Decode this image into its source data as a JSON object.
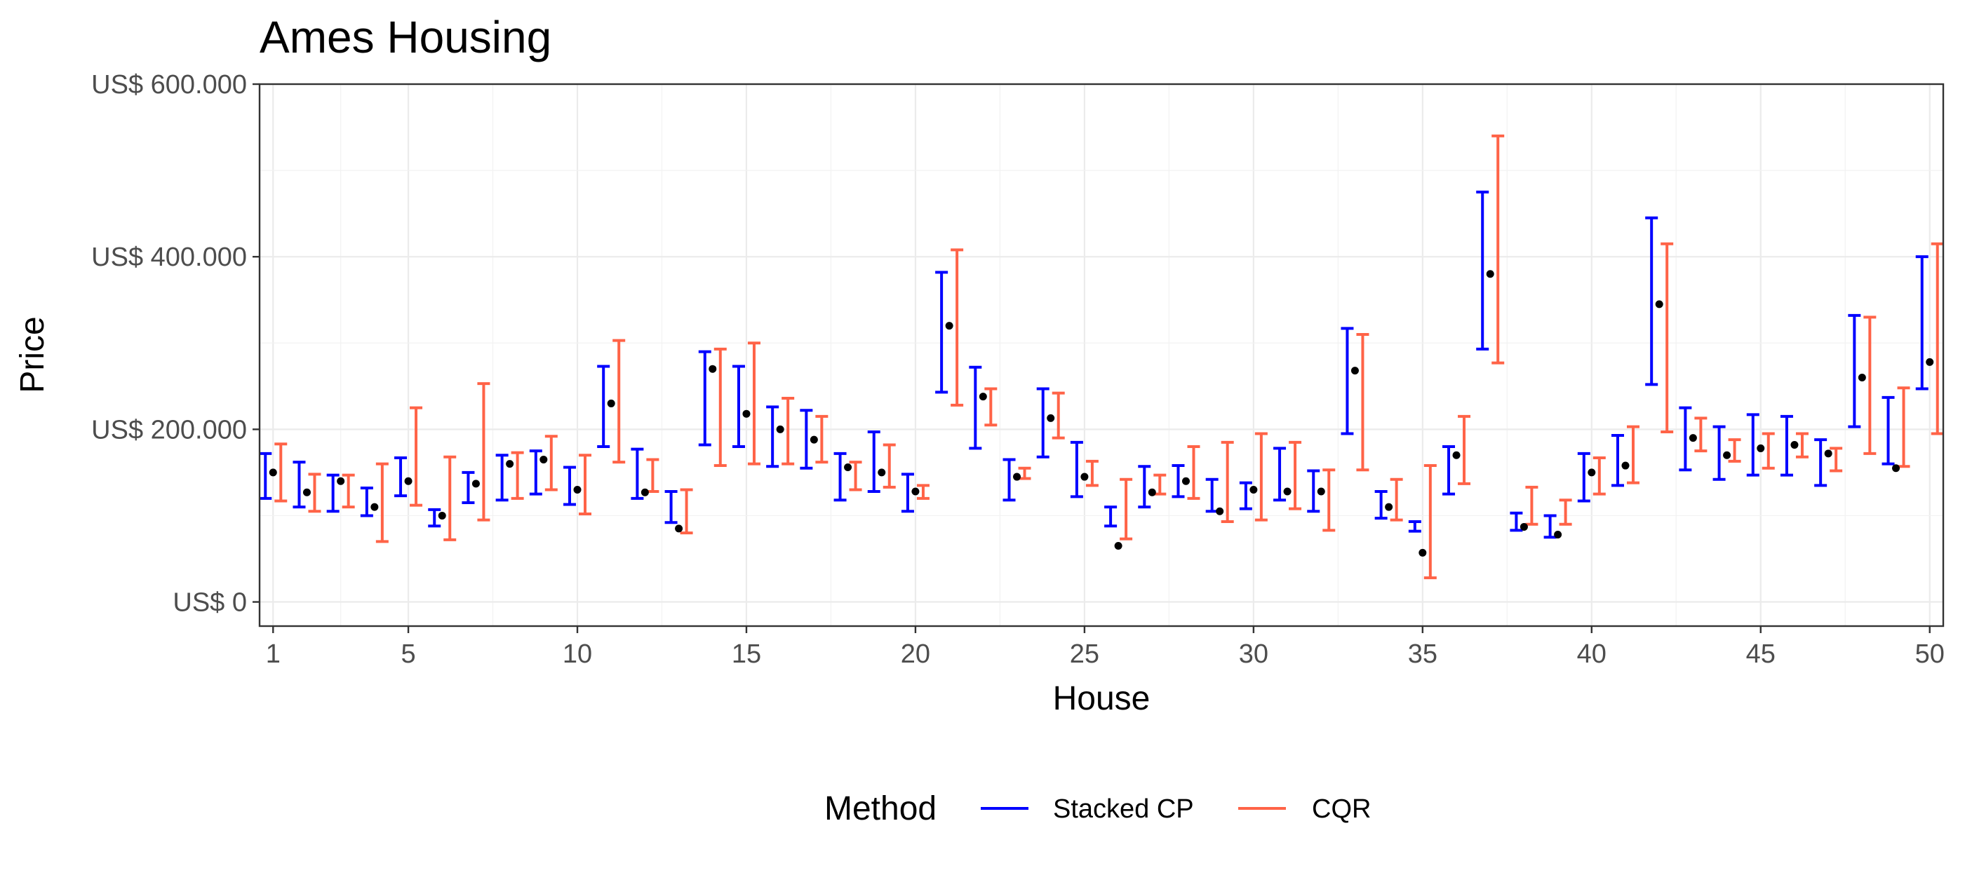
{
  "chart_data": {
    "type": "errorbar",
    "title": "Ames Housing",
    "xlabel": "House",
    "ylabel": "Price",
    "xlim": [
      0.6,
      50.4
    ],
    "ylim": [
      -28000,
      600000
    ],
    "x_ticks": [
      1,
      5,
      10,
      15,
      20,
      25,
      30,
      35,
      40,
      45,
      50
    ],
    "y_ticks": [
      0,
      200000,
      400000,
      600000
    ],
    "y_tick_labels": [
      "US$ 0",
      "US$ 200.000",
      "US$ 400.000",
      "US$ 600.000"
    ],
    "grid": true,
    "legend_position": "bottom",
    "legend_title": "Method",
    "colors": {
      "stacked_cp": "#0000ff",
      "cqr": "#ff6347",
      "point": "#000000"
    },
    "points": [
      {
        "house": 1,
        "price": 150000
      },
      {
        "house": 2,
        "price": 127000
      },
      {
        "house": 3,
        "price": 140000
      },
      {
        "house": 4,
        "price": 110000
      },
      {
        "house": 5,
        "price": 140000
      },
      {
        "house": 6,
        "price": 100000
      },
      {
        "house": 7,
        "price": 137000
      },
      {
        "house": 8,
        "price": 160000
      },
      {
        "house": 9,
        "price": 165000
      },
      {
        "house": 10,
        "price": 130000
      },
      {
        "house": 11,
        "price": 230000
      },
      {
        "house": 12,
        "price": 127000
      },
      {
        "house": 13,
        "price": 85000
      },
      {
        "house": 14,
        "price": 270000
      },
      {
        "house": 15,
        "price": 218000
      },
      {
        "house": 16,
        "price": 200000
      },
      {
        "house": 17,
        "price": 188000
      },
      {
        "house": 18,
        "price": 156000
      },
      {
        "house": 19,
        "price": 150000
      },
      {
        "house": 20,
        "price": 128000
      },
      {
        "house": 21,
        "price": 320000
      },
      {
        "house": 22,
        "price": 238000
      },
      {
        "house": 23,
        "price": 145000
      },
      {
        "house": 24,
        "price": 213000
      },
      {
        "house": 25,
        "price": 145000
      },
      {
        "house": 26,
        "price": 65000
      },
      {
        "house": 27,
        "price": 127000
      },
      {
        "house": 28,
        "price": 140000
      },
      {
        "house": 29,
        "price": 105000
      },
      {
        "house": 30,
        "price": 130000
      },
      {
        "house": 31,
        "price": 128000
      },
      {
        "house": 32,
        "price": 128000
      },
      {
        "house": 33,
        "price": 268000
      },
      {
        "house": 34,
        "price": 110000
      },
      {
        "house": 35,
        "price": 57000
      },
      {
        "house": 36,
        "price": 170000
      },
      {
        "house": 37,
        "price": 380000
      },
      {
        "house": 38,
        "price": 87000
      },
      {
        "house": 39,
        "price": 78000
      },
      {
        "house": 40,
        "price": 150000
      },
      {
        "house": 41,
        "price": 158000
      },
      {
        "house": 42,
        "price": 345000
      },
      {
        "house": 43,
        "price": 190000
      },
      {
        "house": 44,
        "price": 170000
      },
      {
        "house": 45,
        "price": 178000
      },
      {
        "house": 46,
        "price": 182000
      },
      {
        "house": 47,
        "price": 172000
      },
      {
        "house": 48,
        "price": 260000
      },
      {
        "house": 49,
        "price": 155000
      },
      {
        "house": 50,
        "price": 278000
      }
    ],
    "series": [
      {
        "name": "Stacked CP",
        "color": "#0000ff",
        "intervals": [
          {
            "house": 1,
            "low": 120000,
            "high": 172000
          },
          {
            "house": 2,
            "low": 110000,
            "high": 162000
          },
          {
            "house": 3,
            "low": 105000,
            "high": 147000
          },
          {
            "house": 4,
            "low": 100000,
            "high": 132000
          },
          {
            "house": 5,
            "low": 123000,
            "high": 167000
          },
          {
            "house": 6,
            "low": 88000,
            "high": 107000
          },
          {
            "house": 7,
            "low": 115000,
            "high": 150000
          },
          {
            "house": 8,
            "low": 118000,
            "high": 170000
          },
          {
            "house": 9,
            "low": 125000,
            "high": 175000
          },
          {
            "house": 10,
            "low": 113000,
            "high": 156000
          },
          {
            "house": 11,
            "low": 180000,
            "high": 273000
          },
          {
            "house": 12,
            "low": 120000,
            "high": 177000
          },
          {
            "house": 13,
            "low": 92000,
            "high": 128000
          },
          {
            "house": 14,
            "low": 182000,
            "high": 290000
          },
          {
            "house": 15,
            "low": 180000,
            "high": 273000
          },
          {
            "house": 16,
            "low": 157000,
            "high": 226000
          },
          {
            "house": 17,
            "low": 155000,
            "high": 222000
          },
          {
            "house": 18,
            "low": 118000,
            "high": 172000
          },
          {
            "house": 19,
            "low": 128000,
            "high": 197000
          },
          {
            "house": 20,
            "low": 105000,
            "high": 148000
          },
          {
            "house": 21,
            "low": 243000,
            "high": 382000
          },
          {
            "house": 22,
            "low": 178000,
            "high": 272000
          },
          {
            "house": 23,
            "low": 118000,
            "high": 165000
          },
          {
            "house": 24,
            "low": 168000,
            "high": 247000
          },
          {
            "house": 25,
            "low": 122000,
            "high": 185000
          },
          {
            "house": 26,
            "low": 88000,
            "high": 110000
          },
          {
            "house": 27,
            "low": 110000,
            "high": 157000
          },
          {
            "house": 28,
            "low": 122000,
            "high": 158000
          },
          {
            "house": 29,
            "low": 105000,
            "high": 142000
          },
          {
            "house": 30,
            "low": 108000,
            "high": 138000
          },
          {
            "house": 31,
            "low": 118000,
            "high": 178000
          },
          {
            "house": 32,
            "low": 105000,
            "high": 152000
          },
          {
            "house": 33,
            "low": 195000,
            "high": 317000
          },
          {
            "house": 34,
            "low": 97000,
            "high": 128000
          },
          {
            "house": 35,
            "low": 82000,
            "high": 93000
          },
          {
            "house": 36,
            "low": 125000,
            "high": 180000
          },
          {
            "house": 37,
            "low": 293000,
            "high": 475000
          },
          {
            "house": 38,
            "low": 83000,
            "high": 103000
          },
          {
            "house": 39,
            "low": 75000,
            "high": 100000
          },
          {
            "house": 40,
            "low": 117000,
            "high": 172000
          },
          {
            "house": 41,
            "low": 135000,
            "high": 193000
          },
          {
            "house": 42,
            "low": 252000,
            "high": 445000
          },
          {
            "house": 43,
            "low": 153000,
            "high": 225000
          },
          {
            "house": 44,
            "low": 142000,
            "high": 203000
          },
          {
            "house": 45,
            "low": 147000,
            "high": 217000
          },
          {
            "house": 46,
            "low": 147000,
            "high": 215000
          },
          {
            "house": 47,
            "low": 135000,
            "high": 188000
          },
          {
            "house": 48,
            "low": 203000,
            "high": 332000
          },
          {
            "house": 49,
            "low": 160000,
            "high": 237000
          },
          {
            "house": 50,
            "low": 247000,
            "high": 400000
          }
        ]
      },
      {
        "name": "CQR",
        "color": "#ff6347",
        "intervals": [
          {
            "house": 1,
            "low": 117000,
            "high": 183000
          },
          {
            "house": 2,
            "low": 105000,
            "high": 148000
          },
          {
            "house": 3,
            "low": 110000,
            "high": 147000
          },
          {
            "house": 4,
            "low": 70000,
            "high": 160000
          },
          {
            "house": 5,
            "low": 112000,
            "high": 225000
          },
          {
            "house": 6,
            "low": 72000,
            "high": 168000
          },
          {
            "house": 7,
            "low": 95000,
            "high": 253000
          },
          {
            "house": 8,
            "low": 120000,
            "high": 173000
          },
          {
            "house": 9,
            "low": 130000,
            "high": 192000
          },
          {
            "house": 10,
            "low": 102000,
            "high": 170000
          },
          {
            "house": 11,
            "low": 162000,
            "high": 303000
          },
          {
            "house": 12,
            "low": 128000,
            "high": 165000
          },
          {
            "house": 13,
            "low": 80000,
            "high": 130000
          },
          {
            "house": 14,
            "low": 158000,
            "high": 293000
          },
          {
            "house": 15,
            "low": 160000,
            "high": 300000
          },
          {
            "house": 16,
            "low": 160000,
            "high": 236000
          },
          {
            "house": 17,
            "low": 162000,
            "high": 215000
          },
          {
            "house": 18,
            "low": 130000,
            "high": 162000
          },
          {
            "house": 19,
            "low": 133000,
            "high": 182000
          },
          {
            "house": 20,
            "low": 120000,
            "high": 135000
          },
          {
            "house": 21,
            "low": 228000,
            "high": 408000
          },
          {
            "house": 22,
            "low": 205000,
            "high": 247000
          },
          {
            "house": 23,
            "low": 143000,
            "high": 155000
          },
          {
            "house": 24,
            "low": 190000,
            "high": 242000
          },
          {
            "house": 25,
            "low": 135000,
            "high": 163000
          },
          {
            "house": 26,
            "low": 73000,
            "high": 142000
          },
          {
            "house": 27,
            "low": 125000,
            "high": 147000
          },
          {
            "house": 28,
            "low": 120000,
            "high": 180000
          },
          {
            "house": 29,
            "low": 93000,
            "high": 185000
          },
          {
            "house": 30,
            "low": 95000,
            "high": 195000
          },
          {
            "house": 31,
            "low": 108000,
            "high": 185000
          },
          {
            "house": 32,
            "low": 83000,
            "high": 153000
          },
          {
            "house": 33,
            "low": 153000,
            "high": 310000
          },
          {
            "house": 34,
            "low": 95000,
            "high": 142000
          },
          {
            "house": 35,
            "low": 28000,
            "high": 158000
          },
          {
            "house": 36,
            "low": 137000,
            "high": 215000
          },
          {
            "house": 37,
            "low": 277000,
            "high": 540000
          },
          {
            "house": 38,
            "low": 90000,
            "high": 133000
          },
          {
            "house": 39,
            "low": 90000,
            "high": 118000
          },
          {
            "house": 40,
            "low": 125000,
            "high": 167000
          },
          {
            "house": 41,
            "low": 138000,
            "high": 203000
          },
          {
            "house": 42,
            "low": 197000,
            "high": 415000
          },
          {
            "house": 43,
            "low": 175000,
            "high": 213000
          },
          {
            "house": 44,
            "low": 163000,
            "high": 188000
          },
          {
            "house": 45,
            "low": 155000,
            "high": 195000
          },
          {
            "house": 46,
            "low": 168000,
            "high": 195000
          },
          {
            "house": 47,
            "low": 152000,
            "high": 178000
          },
          {
            "house": 48,
            "low": 172000,
            "high": 330000
          },
          {
            "house": 49,
            "low": 157000,
            "high": 248000
          },
          {
            "house": 50,
            "low": 195000,
            "high": 415000
          }
        ]
      }
    ]
  }
}
